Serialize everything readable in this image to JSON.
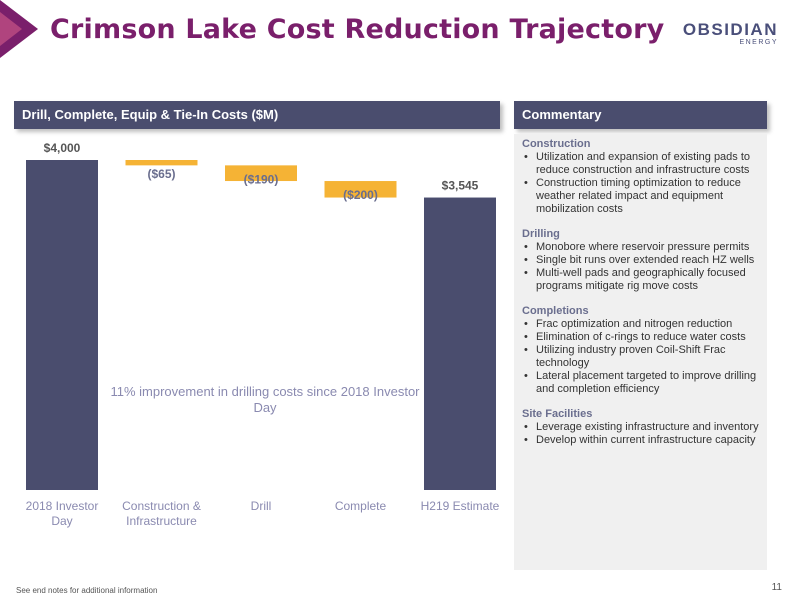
{
  "header": {
    "title": "Crimson Lake Cost Reduction Trajectory",
    "logo_main": "OBSIDIAN",
    "logo_sub": "ENERGY"
  },
  "chart_panel": {
    "title": "Drill, Complete, Equip & Tie-In Costs ($M)"
  },
  "commentary": {
    "title": "Commentary",
    "sections": [
      {
        "title": "Construction",
        "bullets": [
          "Utilization and expansion of existing pads to reduce construction and infrastructure costs",
          "Construction timing optimization to reduce weather related impact and equipment mobilization costs"
        ]
      },
      {
        "title": "Drilling",
        "bullets": [
          "Monobore where reservoir pressure permits",
          "Single bit runs over extended reach HZ wells",
          "Multi-well pads and geographically focused programs mitigate rig move costs"
        ]
      },
      {
        "title": "Completions",
        "bullets": [
          "Frac optimization and nitrogen reduction",
          "Elimination of c-rings to reduce water costs",
          "Utilizing industry proven Coil-Shift Frac technology",
          "Lateral placement targeted to improve drilling and completion efficiency"
        ]
      },
      {
        "title": "Site Facilities",
        "bullets": [
          "Leverage existing infrastructure and inventory",
          "Develop within current infrastructure capacity"
        ]
      }
    ]
  },
  "chart_data": {
    "type": "bar",
    "subtype": "waterfall",
    "categories": [
      "2018 Investor Day",
      "Construction & Infrastructure",
      "Drill",
      "Complete",
      "H219 Estimate"
    ],
    "category_lines": [
      [
        "2018 Investor",
        "Day"
      ],
      [
        "Construction &",
        "Infrastructure"
      ],
      [
        "Drill"
      ],
      [
        "Complete"
      ],
      [
        "H219 Estimate"
      ]
    ],
    "values": [
      4000,
      -65,
      -190,
      -200,
      3545
    ],
    "kinds": [
      "total",
      "delta",
      "delta",
      "delta",
      "total"
    ],
    "labels": [
      "$4,000",
      "($65)",
      "($190)",
      "($200)",
      "$3,545"
    ],
    "colors": {
      "total": "#4a4d6e",
      "delta": "#f5b335",
      "total_label": "#555555",
      "delta_label": "#6a6e8e"
    },
    "annotation": "11% improvement in drilling costs since 2018 Investor Day"
  },
  "footer": {
    "note": "See end notes for additional information",
    "page": "11"
  }
}
